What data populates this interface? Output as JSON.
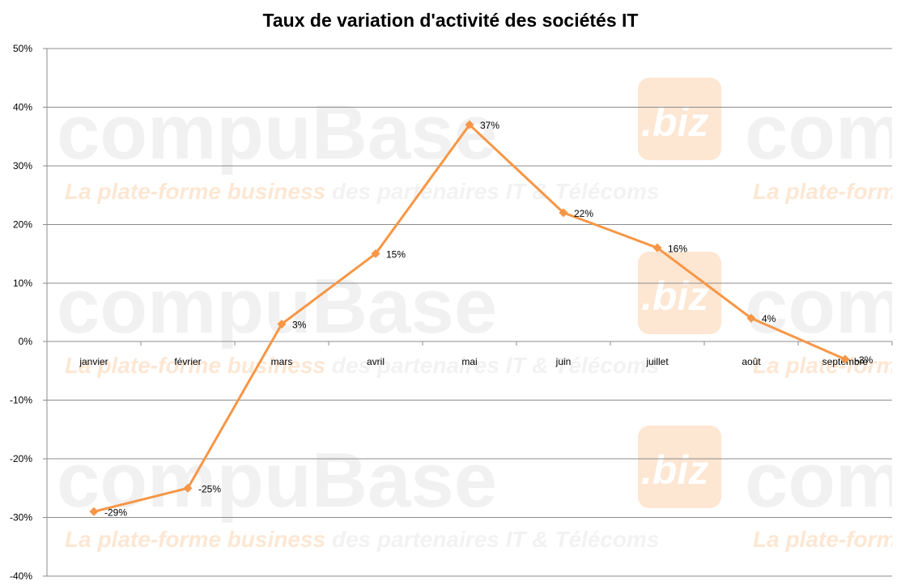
{
  "chart_data": {
    "type": "line",
    "title": "Taux de variation d'activité des sociétés IT",
    "xlabel": "",
    "ylabel": "",
    "categories": [
      "janvier",
      "février",
      "mars",
      "avril",
      "mai",
      "juin",
      "juillet",
      "août",
      "septembre"
    ],
    "series": [
      {
        "values": [
          -29,
          -25,
          3,
          15,
          37,
          22,
          16,
          4,
          -3
        ],
        "color": "#F79646"
      }
    ],
    "data_labels": [
      "-29%",
      "-25%",
      "3%",
      "15%",
      "37%",
      "22%",
      "16%",
      "4%",
      "-3%"
    ],
    "ylim": [
      -40,
      50
    ],
    "yticks": [
      50,
      40,
      30,
      20,
      10,
      0,
      -10,
      -20,
      -30,
      -40
    ],
    "ytick_labels": [
      "50%",
      "40%",
      "30%",
      "20%",
      "10%",
      "0%",
      "-10%",
      "-20%",
      "-30%",
      "-40%"
    ],
    "grid": true,
    "legend": "none",
    "marker": "diamond"
  },
  "watermark": {
    "brand": "compuBase",
    "badge": ".biz",
    "tagline_accent": "La plate-forme business",
    "tagline_rest": " des partenaires IT & Télécoms"
  },
  "colors": {
    "line": "#F79646",
    "gridline": "#8c8c8c",
    "axis": "#8c8c8c"
  }
}
